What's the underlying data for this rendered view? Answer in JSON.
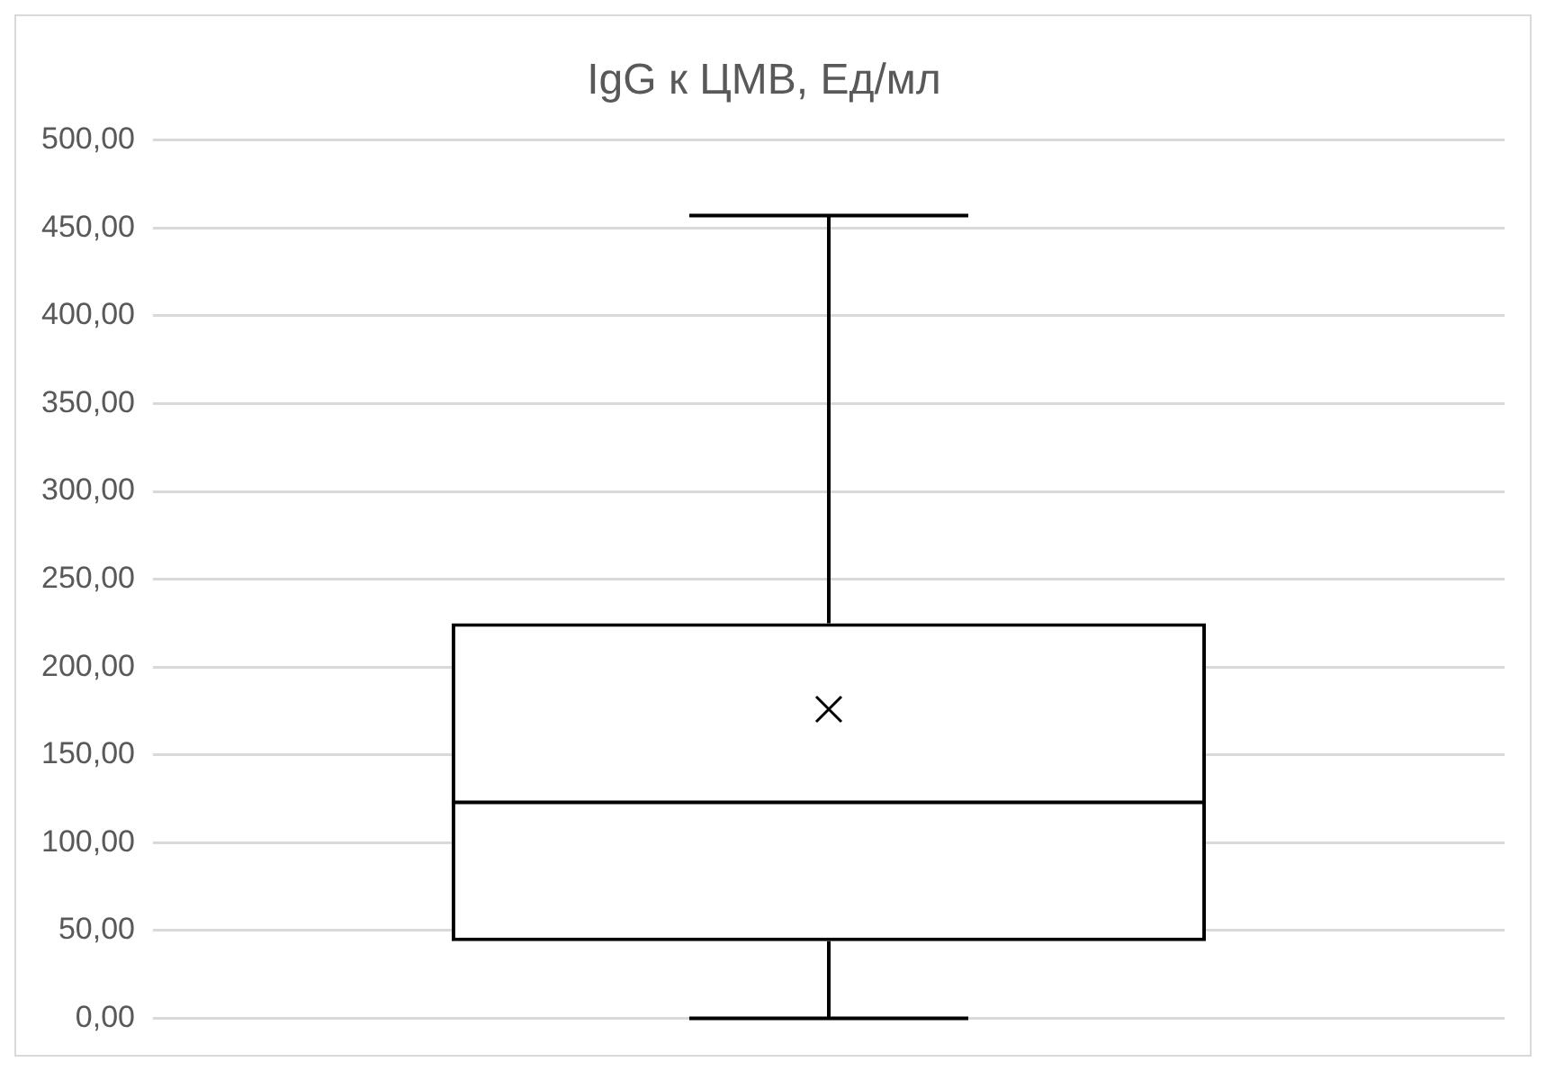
{
  "chart_data": {
    "type": "box",
    "title": "IgG к ЦМВ, Ед/мл",
    "categories": [
      null
    ],
    "boxes": [
      {
        "low": 0,
        "q1": 44,
        "median": 123,
        "q3": 225,
        "high": 457,
        "mean": 176
      }
    ],
    "color": "#000000",
    "ylim": [
      0,
      500
    ],
    "yticks": [
      {
        "value": 0,
        "label": "0,00"
      },
      {
        "value": 50,
        "label": "50,00"
      },
      {
        "value": 100,
        "label": "100,00"
      },
      {
        "value": 150,
        "label": "150,00"
      },
      {
        "value": 200,
        "label": "200,00"
      },
      {
        "value": 250,
        "label": "250,00"
      },
      {
        "value": 300,
        "label": "300,00"
      },
      {
        "value": 350,
        "label": "350,00"
      },
      {
        "value": 400,
        "label": "400,00"
      },
      {
        "value": 450,
        "label": "450,00"
      },
      {
        "value": 500,
        "label": "500,00"
      }
    ],
    "grid": "y",
    "tick_labels": "y",
    "marker": "cross"
  }
}
